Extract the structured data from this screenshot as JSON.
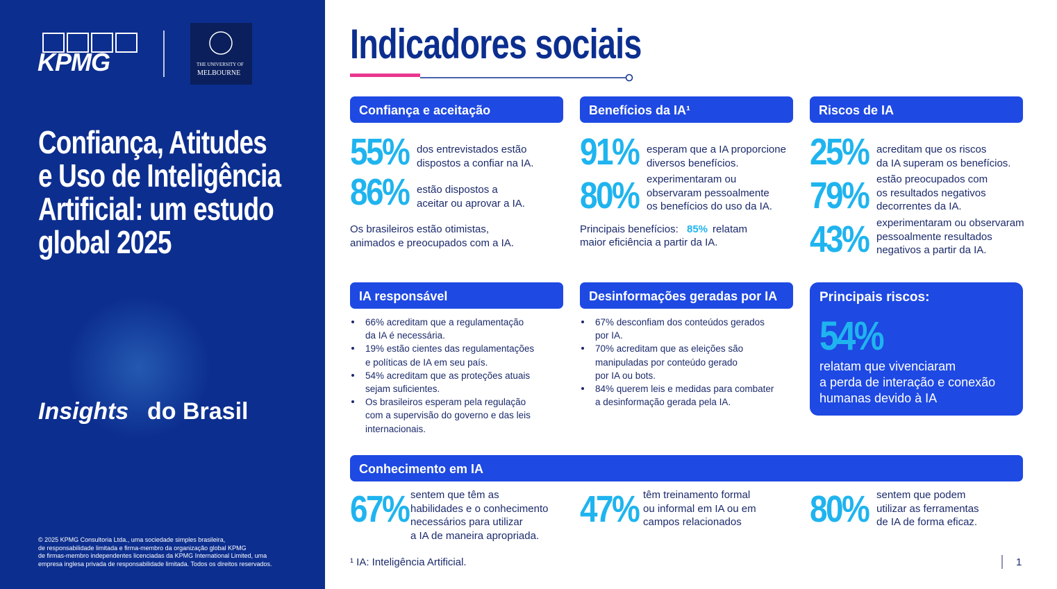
{
  "sidebar": {
    "logo": "KPMG",
    "university_line1": "THE UNIVERSITY OF",
    "university_line2": "MELBOURNE",
    "title_lines": [
      "Confiança, Atitudes",
      "e Uso de Inteligência",
      "Artificial: um estudo",
      "global 2025"
    ],
    "insights_italic": "Insights",
    "insights_rest": "do Brasil",
    "copyright_lines": [
      "© 2025 KPMG Consultoria Ltda., uma sociedade simples brasileira,",
      "de responsabilidade limitada e firma-membro da organização global KPMG",
      "de firmas-membro independentes licenciadas da KPMG International Limited, uma",
      "empresa inglesa privada de responsabilidade limitada. Todos os direitos reservados."
    ]
  },
  "header": {
    "title": "Indicadores sociais"
  },
  "confianca": {
    "heading": "Confiança e aceitação",
    "stats": [
      {
        "value": "55%",
        "lines": [
          "dos entrevistados estão",
          "dispostos a confiar na IA."
        ]
      },
      {
        "value": "86%",
        "lines": [
          "estão dispostos a",
          "aceitar ou aprovar a IA."
        ]
      }
    ],
    "note_lines": [
      "Os brasileiros estão otimistas,",
      "animados e preocupados com a IA."
    ]
  },
  "beneficios": {
    "heading": "Benefícios da IA¹",
    "stats": [
      {
        "value": "91%",
        "lines": [
          "esperam que a IA proporcione",
          "diversos benefícios."
        ]
      },
      {
        "value": "80%",
        "lines": [
          "experimentaram ou",
          "observaram pessoalmente",
          "os benefícios do uso da IA."
        ]
      }
    ],
    "note": {
      "before": "Principais benefícios:",
      "highlight": "85%",
      "after": "relatam",
      "line2": "maior eficiência a partir da IA."
    }
  },
  "riscos": {
    "heading": "Riscos de IA",
    "stats": [
      {
        "value": "25%",
        "lines": [
          "acreditam que os riscos",
          "da IA superam os benefícios."
        ]
      },
      {
        "value": "79%",
        "lines": [
          "estão preocupados com",
          "os resultados negativos",
          "decorrentes da IA."
        ]
      },
      {
        "value": "43%",
        "lines": [
          "experimentaram ou observaram",
          "pessoalmente resultados",
          "negativos a partir da IA."
        ]
      }
    ]
  },
  "responsavel": {
    "heading": "IA responsável",
    "bullets": [
      [
        "66% acreditam que a regulamentação",
        "da IA é necessária."
      ],
      [
        "19% estão cientes das regulamentações",
        "e políticas de IA em seu país."
      ],
      [
        "54% acreditam que as proteções atuais",
        "sejam suficientes."
      ],
      [
        "Os brasileiros esperam pela regulação",
        "com a supervisão do governo e das leis",
        "internacionais."
      ]
    ]
  },
  "desinformacao": {
    "heading": "Desinformações geradas por IA",
    "bullets": [
      [
        "67% desconfiam dos conteúdos gerados",
        "por IA."
      ],
      [
        "70% acreditam que as eleições são",
        "manipuladas por conteúdo gerado",
        "por IA ou bots."
      ],
      [
        "84% querem leis e medidas para combater",
        "a desinformação gerada pela IA."
      ]
    ]
  },
  "principais_riscos": {
    "heading": "Principais riscos:",
    "value": "54%",
    "lines": [
      "relatam que vivenciaram",
      "a perda de interação e conexão",
      "humanas devido à IA"
    ]
  },
  "conhecimento": {
    "heading": "Conhecimento em IA",
    "stats": [
      {
        "value": "67%",
        "lines": [
          "sentem que têm as",
          "habilidades e o conhecimento",
          "necessários para utilizar",
          "a IA de maneira apropriada."
        ]
      },
      {
        "value": "47%",
        "lines": [
          "têm treinamento formal",
          "ou informal em IA ou em",
          "campos relacionados"
        ]
      },
      {
        "value": "80%",
        "lines": [
          "sentem que podem",
          "utilizar as ferramentas",
          "de IA de forma eficaz."
        ]
      }
    ]
  },
  "footnote": "¹ IA: Inteligência Artificial.",
  "page_number": "1"
}
